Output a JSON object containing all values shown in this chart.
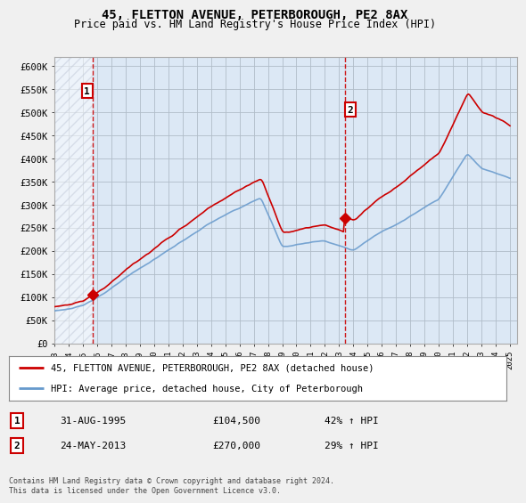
{
  "title": "45, FLETTON AVENUE, PETERBOROUGH, PE2 8AX",
  "subtitle": "Price paid vs. HM Land Registry's House Price Index (HPI)",
  "ylim": [
    0,
    620000
  ],
  "yticks": [
    0,
    50000,
    100000,
    150000,
    200000,
    250000,
    300000,
    350000,
    400000,
    450000,
    500000,
    550000,
    600000
  ],
  "ytick_labels": [
    "£0",
    "£50K",
    "£100K",
    "£150K",
    "£200K",
    "£250K",
    "£300K",
    "£350K",
    "£400K",
    "£450K",
    "£500K",
    "£550K",
    "£600K"
  ],
  "xlim_start": 1993.0,
  "xlim_end": 2025.5,
  "xticks": [
    1993,
    1994,
    1995,
    1996,
    1997,
    1998,
    1999,
    2000,
    2001,
    2002,
    2003,
    2004,
    2005,
    2006,
    2007,
    2008,
    2009,
    2010,
    2011,
    2012,
    2013,
    2014,
    2015,
    2016,
    2017,
    2018,
    2019,
    2020,
    2021,
    2022,
    2023,
    2024,
    2025
  ],
  "background_color": "#f0f0f0",
  "plot_bg_color": "#dce8f5",
  "hatch_color": "#c0c8d8",
  "grid_color": "#b0bcc8",
  "hpi_line_color": "#6699cc",
  "price_line_color": "#cc0000",
  "purchase1_x": 1995.667,
  "purchase1_y": 104500,
  "purchase2_x": 2013.389,
  "purchase2_y": 270000,
  "vline_color": "#cc0000",
  "legend_label1": "45, FLETTON AVENUE, PETERBOROUGH, PE2 8AX (detached house)",
  "legend_label2": "HPI: Average price, detached house, City of Peterborough",
  "table_row1": [
    "1",
    "31-AUG-1995",
    "£104,500",
    "42% ↑ HPI"
  ],
  "table_row2": [
    "2",
    "24-MAY-2013",
    "£270,000",
    "29% ↑ HPI"
  ],
  "footnote": "Contains HM Land Registry data © Crown copyright and database right 2024.\nThis data is licensed under the Open Government Licence v3.0."
}
